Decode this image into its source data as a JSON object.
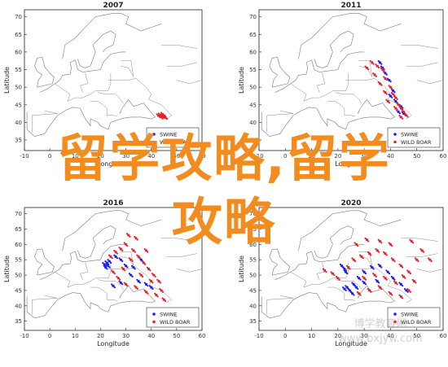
{
  "overlay": {
    "line1": "留学攻略,留学",
    "line2": "攻略",
    "color": "#f28c1e"
  },
  "legend": {
    "swine": "SWINE",
    "boar": "WILD BOAR",
    "swine_color": "#1a1aff",
    "boar_color": "#e8202a"
  },
  "axes": {
    "xlabel": "Longitude",
    "ylabel": "Latitude",
    "xticks": [
      "-10",
      "0",
      "10",
      "20",
      "30",
      "40",
      "50",
      "60"
    ],
    "yticks": [
      "70",
      "65",
      "60",
      "55",
      "50",
      "45",
      "40",
      "35"
    ]
  },
  "chart_data": [
    {
      "type": "scatter",
      "title": "2007",
      "xlabel": "Longitude",
      "ylabel": "Latitude",
      "xlim": [
        -10,
        60
      ],
      "ylim": [
        32,
        72
      ],
      "series": [
        {
          "name": "SWINE",
          "color": "#1a1aff",
          "points": []
        },
        {
          "name": "WILD BOAR",
          "color": "#e8202a",
          "points": [
            [
              43.5,
              42.1
            ],
            [
              44.2,
              41.8
            ],
            [
              44.8,
              41.6
            ],
            [
              45.2,
              41.9
            ],
            [
              43.9,
              41.5
            ],
            [
              44.5,
              42.3
            ],
            [
              45.6,
              41.4
            ],
            [
              42.8,
              41.9
            ]
          ]
        }
      ]
    },
    {
      "type": "scatter",
      "title": "2011",
      "xlabel": "Longitude",
      "ylabel": "Latitude",
      "xlim": [
        -10,
        60
      ],
      "ylim": [
        32,
        72
      ],
      "series": [
        {
          "name": "SWINE",
          "color": "#1a1aff",
          "points": [
            [
              37,
              55.5
            ],
            [
              38,
              54
            ],
            [
              39.5,
              52
            ],
            [
              40,
              47.5
            ],
            [
              42,
              46
            ],
            [
              44,
              44.5
            ],
            [
              43,
              43
            ],
            [
              45,
              42.5
            ],
            [
              36,
              57
            ],
            [
              41,
              49
            ]
          ]
        },
        {
          "name": "WILD BOAR",
          "color": "#e8202a",
          "points": [
            [
              33,
              57
            ],
            [
              35,
              56
            ],
            [
              37,
              55
            ],
            [
              38,
              52.5
            ],
            [
              40,
              50
            ],
            [
              41,
              48
            ],
            [
              42,
              47
            ],
            [
              43,
              45
            ],
            [
              44,
              44
            ],
            [
              45,
              43
            ],
            [
              46,
              42
            ],
            [
              44,
              41.5
            ],
            [
              42,
              44
            ],
            [
              39,
              46
            ],
            [
              36,
              51
            ],
            [
              34,
              53.5
            ],
            [
              31,
              55.5
            ],
            [
              38,
              48.5
            ]
          ]
        }
      ]
    },
    {
      "type": "scatter",
      "title": "2016",
      "xlabel": "Longitude",
      "ylabel": "Latitude",
      "xlim": [
        -10,
        60
      ],
      "ylim": [
        32,
        72
      ],
      "series": [
        {
          "name": "SWINE",
          "color": "#1a1aff",
          "points": [
            [
              21.5,
              53.5
            ],
            [
              22.5,
              54
            ],
            [
              23,
              53
            ],
            [
              22,
              52.5
            ],
            [
              23.5,
              54.5
            ],
            [
              26,
              56
            ],
            [
              28,
              55
            ],
            [
              30,
              53
            ],
            [
              32,
              50
            ],
            [
              35,
              48
            ],
            [
              38,
              47
            ],
            [
              40,
              46
            ],
            [
              28,
              47.5
            ],
            [
              25,
              46.5
            ],
            [
              33,
              52.5
            ],
            [
              36,
              55
            ]
          ]
        },
        {
          "name": "WILD BOAR",
          "color": "#e8202a",
          "points": [
            [
              24,
              56
            ],
            [
              26,
              57.5
            ],
            [
              28,
              58.5
            ],
            [
              30,
              60
            ],
            [
              33,
              58
            ],
            [
              35,
              56
            ],
            [
              37,
              54
            ],
            [
              39,
              52
            ],
            [
              41,
              50
            ],
            [
              43,
              48
            ],
            [
              44,
              45
            ],
            [
              45,
              42
            ],
            [
              42,
              43.5
            ],
            [
              38,
              44.5
            ],
            [
              34,
              46
            ],
            [
              30,
              47
            ],
            [
              27,
              49
            ],
            [
              25,
              51
            ],
            [
              29,
              52
            ],
            [
              32,
              55
            ],
            [
              36,
              50
            ],
            [
              40,
              48
            ],
            [
              34,
              62
            ],
            [
              31,
              63
            ],
            [
              38,
              58
            ]
          ]
        }
      ]
    },
    {
      "type": "scatter",
      "title": "2020",
      "xlabel": "Longitude",
      "ylabel": "Latitude",
      "xlim": [
        -10,
        60
      ],
      "ylim": [
        32,
        72
      ],
      "series": [
        {
          "name": "SWINE",
          "color": "#1a1aff",
          "points": [
            [
              21.5,
              53
            ],
            [
              22.5,
              52
            ],
            [
              23,
              51
            ],
            [
              23.5,
              46
            ],
            [
              24.5,
              45
            ],
            [
              25.5,
              44
            ],
            [
              22.5,
              45.5
            ],
            [
              27,
              46
            ],
            [
              26,
              47
            ],
            [
              28,
              49
            ],
            [
              30,
              51
            ],
            [
              33,
              52.5
            ],
            [
              36,
              53
            ],
            [
              39,
              51
            ],
            [
              41,
              49
            ],
            [
              44,
              47
            ],
            [
              46,
              45
            ],
            [
              30,
              47.5
            ],
            [
              35,
              48
            ]
          ]
        },
        {
          "name": "WILD BOAR",
          "color": "#e8202a",
          "points": [
            [
              15,
              51.5
            ],
            [
              18,
              50.5
            ],
            [
              20,
              49
            ],
            [
              24,
              52.5
            ],
            [
              26,
              55
            ],
            [
              29,
              56
            ],
            [
              32,
              57
            ],
            [
              35,
              58
            ],
            [
              38,
              57
            ],
            [
              41,
              55
            ],
            [
              44,
              53
            ],
            [
              47,
              51
            ],
            [
              49,
              48
            ],
            [
              47,
              45
            ],
            [
              44,
              43
            ],
            [
              40,
              44
            ],
            [
              36,
              46
            ],
            [
              32,
              45
            ],
            [
              28,
              44
            ],
            [
              30,
              49
            ],
            [
              34,
              50
            ],
            [
              38,
              49
            ],
            [
              42,
              47.5
            ],
            [
              45,
              49.5
            ],
            [
              50,
              55
            ],
            [
              52,
              58
            ],
            [
              40,
              60
            ],
            [
              36,
              61
            ],
            [
              31,
              61.5
            ],
            [
              27,
              60
            ],
            [
              48,
              61
            ],
            [
              55,
              55
            ]
          ]
        }
      ]
    }
  ],
  "watermark": {
    "line1": "博学教育网",
    "line2": "www.bxjyw.com"
  }
}
